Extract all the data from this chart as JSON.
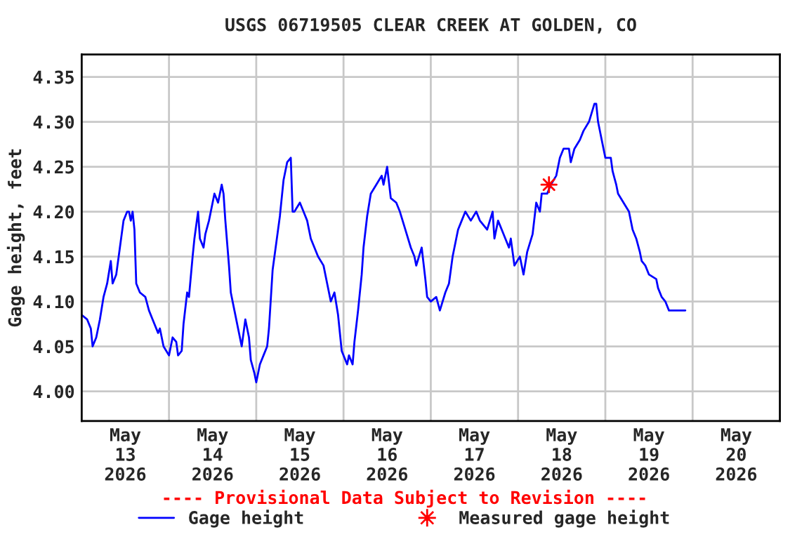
{
  "chart_data": {
    "type": "line",
    "title": "USGS 06719505 CLEAR CREEK AT GOLDEN, CO",
    "ylabel": "Gage height, feet",
    "annotations": [
      "---- Provisional Data Subject to Revision ----"
    ],
    "xlim": [
      "2026-05-13T00:00",
      "2026-05-21T00:00"
    ],
    "xticks": [
      {
        "value": "2026-05-13T12:00",
        "label": "May\n13\n2026"
      },
      {
        "value": "2026-05-14T12:00",
        "label": "May\n14\n2026"
      },
      {
        "value": "2026-05-15T12:00",
        "label": "May\n15\n2026"
      },
      {
        "value": "2026-05-16T12:00",
        "label": "May\n16\n2026"
      },
      {
        "value": "2026-05-17T12:00",
        "label": "May\n17\n2026"
      },
      {
        "value": "2026-05-18T12:00",
        "label": "May\n18\n2026"
      },
      {
        "value": "2026-05-19T12:00",
        "label": "May\n19\n2026"
      },
      {
        "value": "2026-05-20T12:00",
        "label": "May\n20\n2026"
      }
    ],
    "ylim": [
      3.967,
      4.375
    ],
    "yticks": [
      {
        "value": 4.0,
        "label": "4.00"
      },
      {
        "value": 4.05,
        "label": "4.05"
      },
      {
        "value": 4.1,
        "label": "4.10"
      },
      {
        "value": 4.15,
        "label": "4.15"
      },
      {
        "value": 4.2,
        "label": "4.20"
      },
      {
        "value": 4.25,
        "label": "4.25"
      },
      {
        "value": 4.3,
        "label": "4.30"
      },
      {
        "value": 4.35,
        "label": "4.35"
      }
    ],
    "grid": true,
    "legend": "bottom",
    "series": [
      {
        "name": "Gage height",
        "color": "#0000ff",
        "marker": "none",
        "line_style": "solid",
        "x": [
          "2026-05-13T00:00",
          "2026-05-13T01:30",
          "2026-05-13T02:30",
          "2026-05-13T03:00",
          "2026-05-13T04:00",
          "2026-05-13T05:00",
          "2026-05-13T06:00",
          "2026-05-13T07:00",
          "2026-05-13T08:00",
          "2026-05-13T08:30",
          "2026-05-13T09:30",
          "2026-05-13T10:30",
          "2026-05-13T11:30",
          "2026-05-13T12:30",
          "2026-05-13T13:00",
          "2026-05-13T13:30",
          "2026-05-13T14:00",
          "2026-05-13T14:30",
          "2026-05-13T15:00",
          "2026-05-13T16:00",
          "2026-05-13T17:30",
          "2026-05-13T18:30",
          "2026-05-13T19:30",
          "2026-05-13T21:00",
          "2026-05-13T21:30",
          "2026-05-13T22:30",
          "2026-05-14T00:00",
          "2026-05-14T01:00",
          "2026-05-14T02:00",
          "2026-05-14T02:30",
          "2026-05-14T03:30",
          "2026-05-14T04:00",
          "2026-05-14T05:00",
          "2026-05-14T05:30",
          "2026-05-14T06:30",
          "2026-05-14T07:00",
          "2026-05-14T08:00",
          "2026-05-14T08:30",
          "2026-05-14T09:30",
          "2026-05-14T10:00",
          "2026-05-14T11:00",
          "2026-05-14T12:00",
          "2026-05-14T12:30",
          "2026-05-14T13:30",
          "2026-05-14T14:30",
          "2026-05-14T15:00",
          "2026-05-14T15:30",
          "2026-05-14T16:30",
          "2026-05-14T17:00",
          "2026-05-14T18:00",
          "2026-05-14T19:00",
          "2026-05-14T20:00",
          "2026-05-14T21:00",
          "2026-05-14T22:00",
          "2026-05-14T22:30",
          "2026-05-14T23:30",
          "2026-05-15T00:00",
          "2026-05-15T01:00",
          "2026-05-15T02:00",
          "2026-05-15T03:00",
          "2026-05-15T03:30",
          "2026-05-15T04:30",
          "2026-05-15T05:30",
          "2026-05-15T06:30",
          "2026-05-15T07:30",
          "2026-05-15T08:30",
          "2026-05-15T09:30",
          "2026-05-15T10:00",
          "2026-05-15T10:30",
          "2026-05-15T12:00",
          "2026-05-15T13:00",
          "2026-05-15T14:00",
          "2026-05-15T15:00",
          "2026-05-15T17:00",
          "2026-05-15T18:30",
          "2026-05-15T19:30",
          "2026-05-15T20:30",
          "2026-05-15T21:30",
          "2026-05-15T22:30",
          "2026-05-15T23:30",
          "2026-05-16T01:00",
          "2026-05-16T01:30",
          "2026-05-16T02:30",
          "2026-05-16T03:00",
          "2026-05-16T04:00",
          "2026-05-16T05:00",
          "2026-05-16T05:30",
          "2026-05-16T06:30",
          "2026-05-16T07:30",
          "2026-05-16T09:00",
          "2026-05-16T10:30",
          "2026-05-16T11:00",
          "2026-05-16T12:00",
          "2026-05-16T13:00",
          "2026-05-16T14:30",
          "2026-05-16T15:30",
          "2026-05-16T17:00",
          "2026-05-16T18:30",
          "2026-05-16T19:30",
          "2026-05-16T20:00",
          "2026-05-16T21:30",
          "2026-05-16T22:30",
          "2026-05-16T23:00",
          "2026-05-17T00:00",
          "2026-05-17T01:30",
          "2026-05-17T02:30",
          "2026-05-17T04:00",
          "2026-05-17T05:00",
          "2026-05-17T06:00",
          "2026-05-17T07:30",
          "2026-05-17T08:30",
          "2026-05-17T09:30",
          "2026-05-17T11:00",
          "2026-05-17T12:30",
          "2026-05-17T13:30",
          "2026-05-17T15:30",
          "2026-05-17T17:00",
          "2026-05-17T17:30",
          "2026-05-17T18:30",
          "2026-05-17T20:00",
          "2026-05-17T21:30",
          "2026-05-17T22:00",
          "2026-05-17T23:00",
          "2026-05-18T00:30",
          "2026-05-18T01:30",
          "2026-05-18T02:30",
          "2026-05-18T04:00",
          "2026-05-18T05:00",
          "2026-05-18T06:00",
          "2026-05-18T06:30",
          "2026-05-18T08:00",
          "2026-05-18T09:00",
          "2026-05-18T10:30",
          "2026-05-18T11:30",
          "2026-05-18T12:30",
          "2026-05-18T14:00",
          "2026-05-18T14:30",
          "2026-05-18T15:30",
          "2026-05-18T17:00",
          "2026-05-18T18:00",
          "2026-05-18T19:30",
          "2026-05-18T21:00",
          "2026-05-18T21:30",
          "2026-05-18T22:00",
          "2026-05-18T23:00",
          "2026-05-19T00:00",
          "2026-05-19T01:30",
          "2026-05-19T02:00",
          "2026-05-19T03:00",
          "2026-05-19T03:30",
          "2026-05-19T05:00",
          "2026-05-19T06:30",
          "2026-05-19T07:00",
          "2026-05-19T07:30",
          "2026-05-19T08:30",
          "2026-05-19T09:30",
          "2026-05-19T10:00",
          "2026-05-19T11:00",
          "2026-05-19T12:00",
          "2026-05-19T14:00",
          "2026-05-19T14:30",
          "2026-05-19T15:30",
          "2026-05-19T16:30",
          "2026-05-19T17:30",
          "2026-05-19T22:00"
        ],
        "values": [
          4.085,
          4.08,
          4.07,
          4.05,
          4.06,
          4.08,
          4.105,
          4.12,
          4.145,
          4.12,
          4.13,
          4.16,
          4.19,
          4.2,
          4.2,
          4.19,
          4.2,
          4.18,
          4.12,
          4.11,
          4.105,
          4.09,
          4.08,
          4.065,
          4.07,
          4.05,
          4.04,
          4.06,
          4.055,
          4.04,
          4.045,
          4.075,
          4.11,
          4.105,
          4.15,
          4.17,
          4.2,
          4.17,
          4.16,
          4.175,
          4.19,
          4.21,
          4.22,
          4.21,
          4.23,
          4.22,
          4.19,
          4.14,
          4.11,
          4.09,
          4.07,
          4.05,
          4.08,
          4.06,
          4.035,
          4.02,
          4.01,
          4.03,
          4.04,
          4.05,
          4.07,
          4.135,
          4.165,
          4.195,
          4.235,
          4.255,
          4.26,
          4.2,
          4.2,
          4.21,
          4.2,
          4.19,
          4.17,
          4.15,
          4.14,
          4.12,
          4.1,
          4.11,
          4.085,
          4.045,
          4.03,
          4.04,
          4.03,
          4.055,
          4.09,
          4.13,
          4.16,
          4.195,
          4.22,
          4.23,
          4.24,
          4.23,
          4.25,
          4.215,
          4.21,
          4.2,
          4.18,
          4.16,
          4.15,
          4.14,
          4.16,
          4.125,
          4.105,
          4.1,
          4.105,
          4.09,
          4.11,
          4.12,
          4.15,
          4.18,
          4.19,
          4.2,
          4.19,
          4.2,
          4.19,
          4.18,
          4.2,
          4.17,
          4.19,
          4.175,
          4.16,
          4.17,
          4.14,
          4.15,
          4.13,
          4.155,
          4.175,
          4.21,
          4.2,
          4.22,
          4.22,
          4.23,
          4.24,
          4.26,
          4.27,
          4.27,
          4.255,
          4.27,
          4.28,
          4.29,
          4.3,
          4.32,
          4.32,
          4.3,
          4.28,
          4.26,
          4.26,
          4.245,
          4.23,
          4.22,
          4.21,
          4.2,
          4.19,
          4.18,
          4.17,
          4.155,
          4.145,
          4.14,
          4.13,
          4.125,
          4.115,
          4.105,
          4.1,
          4.09,
          4.09
        ]
      },
      {
        "name": "Measured gage height",
        "color": "#ff0000",
        "type": "scatter",
        "marker": "star",
        "x": [
          "2026-05-18T08:30"
        ],
        "values": [
          4.23
        ]
      }
    ]
  }
}
